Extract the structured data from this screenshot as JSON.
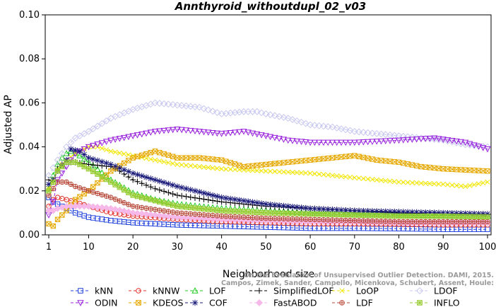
{
  "chart_data": {
    "type": "line",
    "title": "Annthyroid_withoutdupl_02_v03",
    "xlabel": "Neighborhood size",
    "ylabel": "Adjusted AP",
    "xlim": [
      1,
      100
    ],
    "ylim": [
      0,
      0.1
    ],
    "x_ticks": [
      1,
      10,
      20,
      30,
      40,
      50,
      60,
      70,
      80,
      90,
      100
    ],
    "x_tick_labels": [
      "1",
      "10",
      "20",
      "30",
      "40",
      "50",
      "60",
      "70",
      "80",
      "90",
      "100"
    ],
    "y_ticks": [
      0,
      0.02,
      0.04,
      0.06,
      0.08,
      0.1
    ],
    "y_tick_labels": [
      "0.00",
      "0.02",
      "0.04",
      "0.06",
      "0.08",
      "0.10"
    ],
    "grid": false,
    "legend_position": "bottom",
    "watermark": "Campos, Zimek, Sander, Campello, Micenkova, Schubert, Assent, Houle: On the Evaluation of Unsupervised Outlier Detection. DAMI, 2015.",
    "series": [
      {
        "name": "kNN",
        "color": "#1f3fdb",
        "marker": "square",
        "points": [
          [
            1,
            0.017
          ],
          [
            2,
            0.015
          ],
          [
            3,
            0.014
          ],
          [
            5,
            0.012
          ],
          [
            7,
            0.01
          ],
          [
            10,
            0.008
          ],
          [
            15,
            0.0065
          ],
          [
            20,
            0.0055
          ],
          [
            30,
            0.0045
          ],
          [
            40,
            0.004
          ],
          [
            50,
            0.0035
          ],
          [
            60,
            0.003
          ],
          [
            70,
            0.003
          ],
          [
            80,
            0.0028
          ],
          [
            90,
            0.0025
          ],
          [
            100,
            0.0025
          ]
        ]
      },
      {
        "name": "kNNW",
        "color": "#e0302a",
        "marker": "circle",
        "points": [
          [
            1,
            0.013
          ],
          [
            2,
            0.016
          ],
          [
            3,
            0.017
          ],
          [
            5,
            0.016
          ],
          [
            7,
            0.015
          ],
          [
            10,
            0.013
          ],
          [
            15,
            0.01
          ],
          [
            20,
            0.0085
          ],
          [
            30,
            0.007
          ],
          [
            40,
            0.006
          ],
          [
            50,
            0.0055
          ],
          [
            60,
            0.005
          ],
          [
            70,
            0.005
          ],
          [
            80,
            0.0048
          ],
          [
            90,
            0.0045
          ],
          [
            100,
            0.0045
          ]
        ]
      },
      {
        "name": "LOF",
        "color": "#22cc22",
        "marker": "triangle-up",
        "points": [
          [
            1,
            0.021
          ],
          [
            2,
            0.027
          ],
          [
            3,
            0.032
          ],
          [
            4,
            0.035
          ],
          [
            5,
            0.037
          ],
          [
            6,
            0.038
          ],
          [
            8,
            0.036
          ],
          [
            10,
            0.033
          ],
          [
            15,
            0.025
          ],
          [
            20,
            0.019
          ],
          [
            25,
            0.016
          ],
          [
            30,
            0.014
          ],
          [
            40,
            0.012
          ],
          [
            50,
            0.011
          ],
          [
            60,
            0.01
          ],
          [
            70,
            0.0095
          ],
          [
            80,
            0.009
          ],
          [
            90,
            0.0088
          ],
          [
            100,
            0.0087
          ]
        ]
      },
      {
        "name": "SimplifiedLOF",
        "color": "#000000",
        "marker": "plus",
        "points": [
          [
            1,
            0.025
          ],
          [
            2,
            0.024
          ],
          [
            3,
            0.03
          ],
          [
            4,
            0.032
          ],
          [
            5,
            0.033
          ],
          [
            7,
            0.033
          ],
          [
            10,
            0.032
          ],
          [
            15,
            0.031
          ],
          [
            17,
            0.029
          ],
          [
            20,
            0.025
          ],
          [
            25,
            0.021
          ],
          [
            30,
            0.018
          ],
          [
            40,
            0.015
          ],
          [
            50,
            0.013
          ],
          [
            60,
            0.012
          ],
          [
            70,
            0.011
          ],
          [
            80,
            0.01
          ],
          [
            90,
            0.0095
          ],
          [
            100,
            0.0093
          ]
        ]
      },
      {
        "name": "LoOP",
        "color": "#f2e600",
        "marker": "x",
        "points": [
          [
            1,
            0.021
          ],
          [
            2,
            0.025
          ],
          [
            3,
            0.03
          ],
          [
            5,
            0.034
          ],
          [
            7,
            0.037
          ],
          [
            10,
            0.04
          ],
          [
            12,
            0.04
          ],
          [
            15,
            0.038
          ],
          [
            20,
            0.036
          ],
          [
            30,
            0.032
          ],
          [
            40,
            0.03
          ],
          [
            50,
            0.029
          ],
          [
            60,
            0.028
          ],
          [
            70,
            0.026
          ],
          [
            80,
            0.024
          ],
          [
            90,
            0.023
          ],
          [
            95,
            0.022
          ],
          [
            100,
            0.024
          ]
        ]
      },
      {
        "name": "LDOF",
        "color": "#c8c8f0",
        "marker": "diamond",
        "points": [
          [
            1,
            0.027
          ],
          [
            3,
            0.034
          ],
          [
            5,
            0.04
          ],
          [
            7,
            0.044
          ],
          [
            10,
            0.047
          ],
          [
            15,
            0.053
          ],
          [
            20,
            0.057
          ],
          [
            25,
            0.06
          ],
          [
            30,
            0.059
          ],
          [
            35,
            0.058
          ],
          [
            40,
            0.055
          ],
          [
            45,
            0.056
          ],
          [
            48,
            0.056
          ],
          [
            50,
            0.055
          ],
          [
            55,
            0.053
          ],
          [
            60,
            0.05
          ],
          [
            65,
            0.049
          ],
          [
            70,
            0.047
          ],
          [
            75,
            0.046
          ],
          [
            80,
            0.045
          ],
          [
            85,
            0.044
          ],
          [
            90,
            0.043
          ],
          [
            95,
            0.041
          ],
          [
            100,
            0.04
          ]
        ]
      },
      {
        "name": "ODIN",
        "color": "#9922dd",
        "marker": "triangle-down",
        "points": [
          [
            1,
            0.009
          ],
          [
            2,
            0.015
          ],
          [
            3,
            0.025
          ],
          [
            5,
            0.031
          ],
          [
            7,
            0.037
          ],
          [
            10,
            0.04
          ],
          [
            15,
            0.043
          ],
          [
            20,
            0.045
          ],
          [
            25,
            0.047
          ],
          [
            30,
            0.048
          ],
          [
            35,
            0.047
          ],
          [
            40,
            0.046
          ],
          [
            45,
            0.047
          ],
          [
            50,
            0.045
          ],
          [
            55,
            0.043
          ],
          [
            60,
            0.042
          ],
          [
            70,
            0.042
          ],
          [
            80,
            0.043
          ],
          [
            88,
            0.044
          ],
          [
            95,
            0.042
          ],
          [
            100,
            0.039
          ]
        ]
      },
      {
        "name": "KDEOS",
        "color": "#e6a800",
        "marker": "square-x",
        "points": [
          [
            1,
            0.005
          ],
          [
            2,
            0.004
          ],
          [
            3,
            0.007
          ],
          [
            5,
            0.011
          ],
          [
            7,
            0.016
          ],
          [
            10,
            0.02
          ],
          [
            15,
            0.029
          ],
          [
            20,
            0.035
          ],
          [
            25,
            0.038
          ],
          [
            30,
            0.035
          ],
          [
            35,
            0.035
          ],
          [
            40,
            0.034
          ],
          [
            45,
            0.031
          ],
          [
            50,
            0.032
          ],
          [
            55,
            0.033
          ],
          [
            60,
            0.034
          ],
          [
            65,
            0.035
          ],
          [
            70,
            0.036
          ],
          [
            75,
            0.034
          ],
          [
            80,
            0.033
          ],
          [
            85,
            0.031
          ],
          [
            90,
            0.03
          ],
          [
            100,
            0.029
          ]
        ]
      },
      {
        "name": "COF",
        "color": "#1a1a7a",
        "marker": "asterisk",
        "points": [
          [
            1,
            0.023
          ],
          [
            2,
            0.025
          ],
          [
            3,
            0.029
          ],
          [
            5,
            0.034
          ],
          [
            6,
            0.039
          ],
          [
            8,
            0.038
          ],
          [
            10,
            0.035
          ],
          [
            15,
            0.032
          ],
          [
            20,
            0.028
          ],
          [
            25,
            0.025
          ],
          [
            30,
            0.022
          ],
          [
            40,
            0.017
          ],
          [
            50,
            0.014
          ],
          [
            60,
            0.012
          ],
          [
            70,
            0.011
          ],
          [
            80,
            0.0105
          ],
          [
            90,
            0.01
          ],
          [
            100,
            0.0095
          ]
        ]
      },
      {
        "name": "FastABOD",
        "color": "#f5b8e8",
        "marker": "diamond-filled",
        "points": [
          [
            1,
            0.011
          ],
          [
            2,
            0.011
          ],
          [
            3,
            0.012
          ],
          [
            5,
            0.013
          ],
          [
            7,
            0.013
          ],
          [
            10,
            0.013
          ],
          [
            15,
            0.012
          ],
          [
            20,
            0.01
          ],
          [
            30,
            0.008
          ],
          [
            40,
            0.007
          ],
          [
            50,
            0.0065
          ],
          [
            60,
            0.006
          ],
          [
            70,
            0.006
          ],
          [
            80,
            0.0055
          ],
          [
            90,
            0.0055
          ],
          [
            100,
            0.0055
          ]
        ]
      },
      {
        "name": "LDF",
        "color": "#b84a3a",
        "marker": "circle-plus",
        "points": [
          [
            1,
            0.018
          ],
          [
            2,
            0.021
          ],
          [
            3,
            0.024
          ],
          [
            5,
            0.024
          ],
          [
            7,
            0.022
          ],
          [
            10,
            0.02
          ],
          [
            15,
            0.017
          ],
          [
            20,
            0.013
          ],
          [
            30,
            0.01
          ],
          [
            40,
            0.0085
          ],
          [
            50,
            0.0075
          ],
          [
            60,
            0.007
          ],
          [
            70,
            0.0065
          ],
          [
            80,
            0.006
          ],
          [
            90,
            0.006
          ],
          [
            100,
            0.006
          ]
        ]
      },
      {
        "name": "INFLO",
        "color": "#99cc33",
        "marker": "square-cross",
        "points": [
          [
            1,
            0.02
          ],
          [
            2,
            0.024
          ],
          [
            3,
            0.029
          ],
          [
            5,
            0.033
          ],
          [
            7,
            0.033
          ],
          [
            10,
            0.03
          ],
          [
            15,
            0.024
          ],
          [
            20,
            0.018
          ],
          [
            30,
            0.013
          ],
          [
            40,
            0.011
          ],
          [
            50,
            0.01
          ],
          [
            60,
            0.0095
          ],
          [
            70,
            0.009
          ],
          [
            80,
            0.0085
          ],
          [
            90,
            0.0085
          ],
          [
            100,
            0.0082
          ]
        ]
      }
    ]
  }
}
